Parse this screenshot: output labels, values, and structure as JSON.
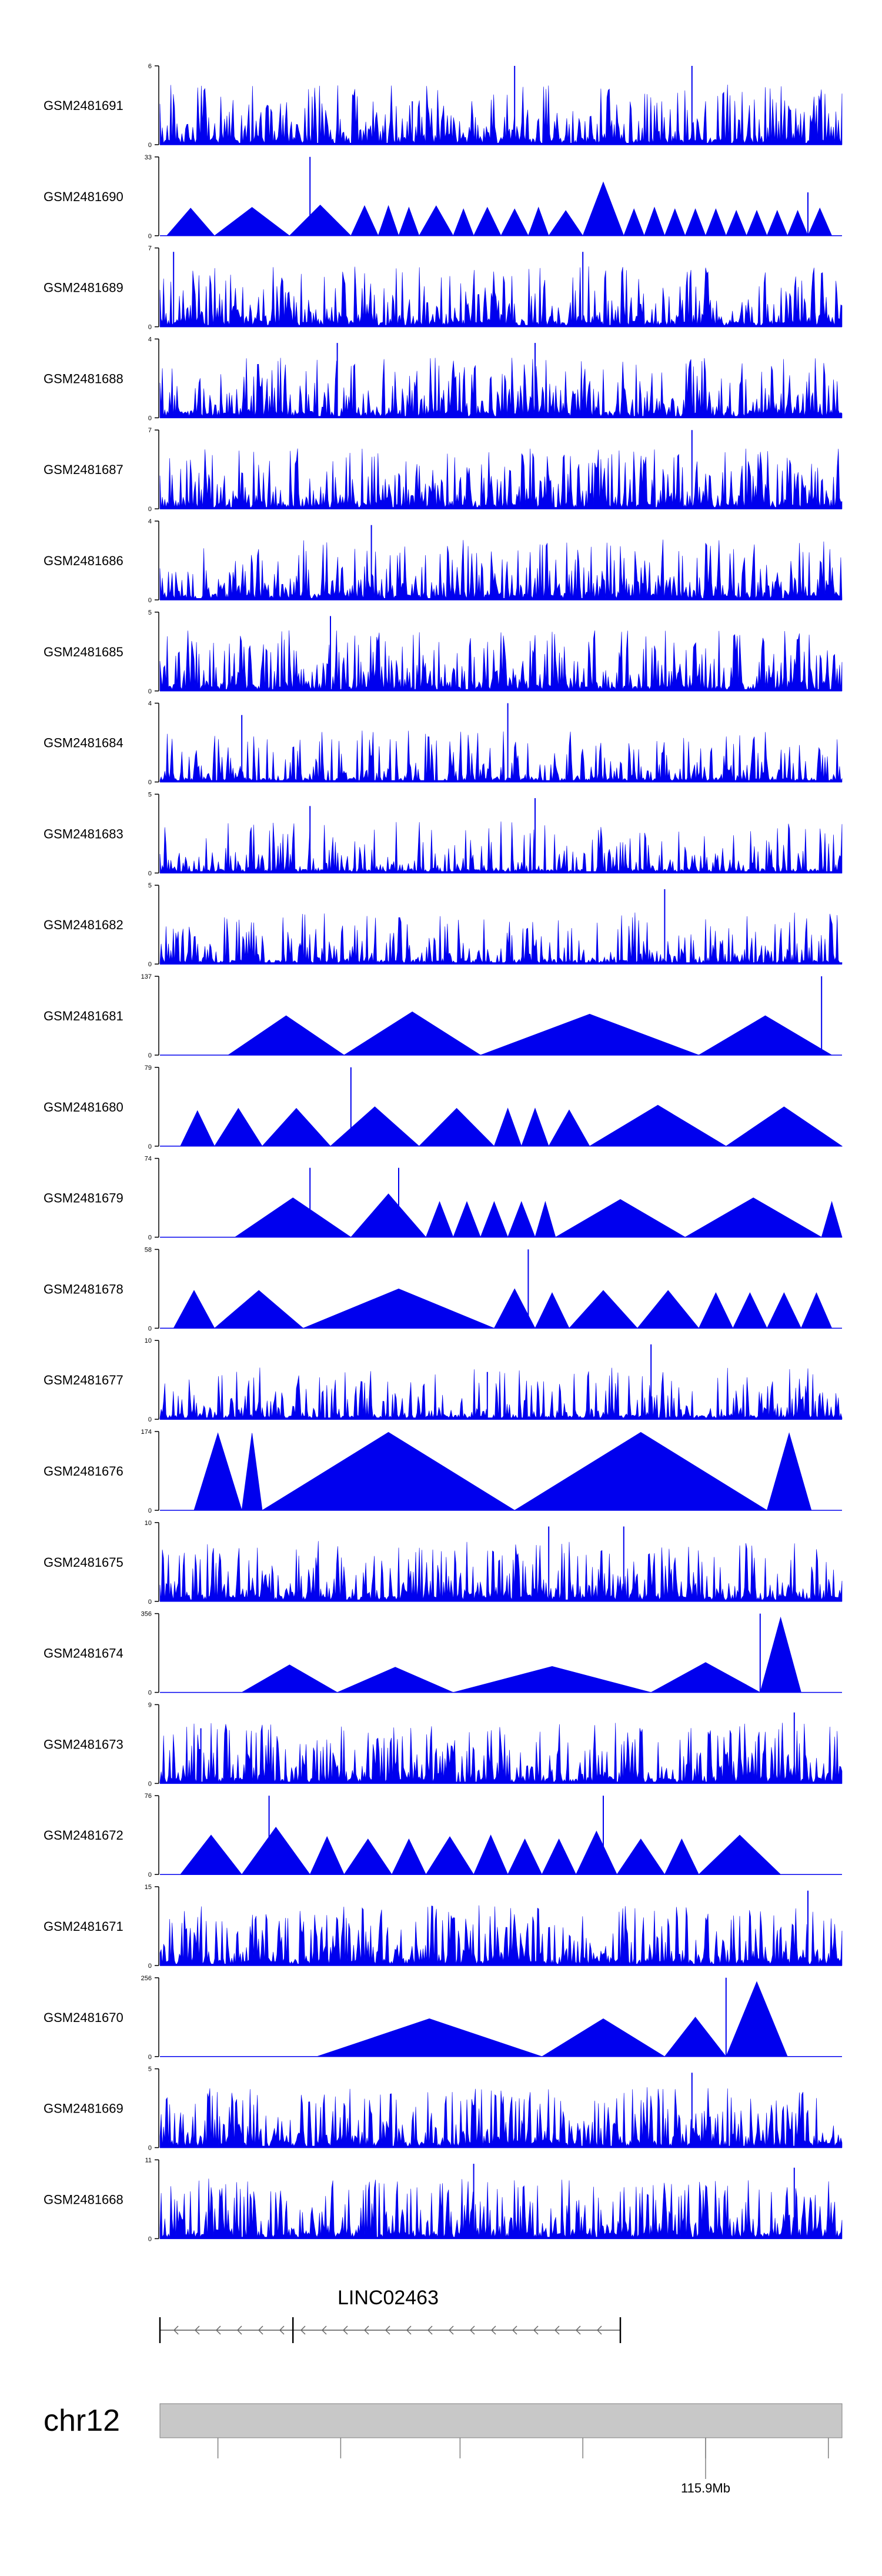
{
  "colors": {
    "signal": "#0000ee",
    "axis": "#000000",
    "ideogram_fill": "#c8c8c8",
    "ideogram_stroke": "#808080",
    "gene": "#555555"
  },
  "chart_data": {
    "type": "area",
    "description_axis": "genomic coordinate (bp) vs coverage",
    "x_domain": [
      115815000,
      115930000
    ],
    "tracks": [
      {
        "name": "GSM2481691",
        "ymax": 6,
        "ymin": 0,
        "style": "dense",
        "seed": 11,
        "peaks": [
          [
            0.52,
            1.0
          ],
          [
            0.78,
            1.0
          ],
          [
            0.37,
            0.55
          ]
        ]
      },
      {
        "name": "GSM2481690",
        "ymax": 33,
        "ymin": 0,
        "style": "triangles",
        "seed": 12,
        "peaks": [
          [
            0.22,
            1.0
          ],
          [
            0.95,
            0.55
          ]
        ],
        "tris": [
          [
            0.01,
            0.08,
            0.35
          ],
          [
            0.08,
            0.19,
            0.36
          ],
          [
            0.19,
            0.28,
            0.39
          ],
          [
            0.28,
            0.32,
            0.38
          ],
          [
            0.32,
            0.35,
            0.38
          ],
          [
            0.35,
            0.38,
            0.36
          ],
          [
            0.38,
            0.43,
            0.38
          ],
          [
            0.43,
            0.46,
            0.34
          ],
          [
            0.46,
            0.5,
            0.36
          ],
          [
            0.5,
            0.54,
            0.34
          ],
          [
            0.54,
            0.57,
            0.36
          ],
          [
            0.57,
            0.62,
            0.32
          ],
          [
            0.62,
            0.68,
            0.68
          ],
          [
            0.68,
            0.71,
            0.34
          ],
          [
            0.71,
            0.74,
            0.36
          ],
          [
            0.74,
            0.77,
            0.34
          ],
          [
            0.77,
            0.8,
            0.34
          ],
          [
            0.8,
            0.83,
            0.34
          ],
          [
            0.83,
            0.86,
            0.32
          ],
          [
            0.86,
            0.89,
            0.32
          ],
          [
            0.89,
            0.92,
            0.32
          ],
          [
            0.92,
            0.95,
            0.32
          ],
          [
            0.95,
            0.985,
            0.35
          ]
        ]
      },
      {
        "name": "GSM2481689",
        "ymax": 7,
        "ymin": 0,
        "style": "dense",
        "seed": 13,
        "peaks": [
          [
            0.02,
            0.95
          ],
          [
            0.62,
            0.95
          ]
        ]
      },
      {
        "name": "GSM2481688",
        "ymax": 4,
        "ymin": 0,
        "style": "dense",
        "seed": 14,
        "peaks": [
          [
            0.26,
            0.95
          ],
          [
            0.55,
            0.95
          ]
        ]
      },
      {
        "name": "GSM2481687",
        "ymax": 7,
        "ymin": 0,
        "style": "dense",
        "seed": 15,
        "peaks": [
          [
            0.78,
            1.0
          ]
        ]
      },
      {
        "name": "GSM2481686",
        "ymax": 4,
        "ymin": 0,
        "style": "dense",
        "seed": 16,
        "peaks": [
          [
            0.31,
            0.95
          ]
        ]
      },
      {
        "name": "GSM2481685",
        "ymax": 5,
        "ymin": 0,
        "style": "dense",
        "seed": 17,
        "peaks": [
          [
            0.25,
            0.95
          ]
        ]
      },
      {
        "name": "GSM2481684",
        "ymax": 4,
        "ymin": 0,
        "style": "sparse",
        "seed": 18,
        "peaks": [
          [
            0.12,
            0.85
          ],
          [
            0.51,
            1.0
          ]
        ]
      },
      {
        "name": "GSM2481683",
        "ymax": 5,
        "ymin": 0,
        "style": "sparse",
        "seed": 19,
        "peaks": [
          [
            0.55,
            0.95
          ],
          [
            0.22,
            0.85
          ]
        ]
      },
      {
        "name": "GSM2481682",
        "ymax": 5,
        "ymin": 0,
        "style": "sparse",
        "seed": 20,
        "peaks": [
          [
            0.74,
            0.95
          ]
        ]
      },
      {
        "name": "GSM2481681",
        "ymax": 137,
        "ymin": 0,
        "style": "triangles",
        "seed": 21,
        "peaks": [
          [
            0.97,
            1.0
          ]
        ],
        "tris": [
          [
            0.1,
            0.27,
            0.5
          ],
          [
            0.27,
            0.47,
            0.55
          ],
          [
            0.47,
            0.79,
            0.52
          ],
          [
            0.79,
            0.985,
            0.5
          ]
        ]
      },
      {
        "name": "GSM2481680",
        "ymax": 79,
        "ymin": 0,
        "style": "triangles",
        "seed": 22,
        "peaks": [
          [
            0.28,
            1.0
          ]
        ],
        "tris": [
          [
            0.03,
            0.08,
            0.45
          ],
          [
            0.08,
            0.15,
            0.48
          ],
          [
            0.15,
            0.25,
            0.48
          ],
          [
            0.25,
            0.38,
            0.5
          ],
          [
            0.38,
            0.49,
            0.48
          ],
          [
            0.49,
            0.53,
            0.48
          ],
          [
            0.53,
            0.57,
            0.48
          ],
          [
            0.57,
            0.63,
            0.46
          ],
          [
            0.63,
            0.83,
            0.52
          ],
          [
            0.83,
            1.0,
            0.5
          ]
        ]
      },
      {
        "name": "GSM2481679",
        "ymax": 74,
        "ymin": 0,
        "style": "triangles",
        "seed": 23,
        "peaks": [
          [
            0.22,
            0.88
          ],
          [
            0.35,
            0.88
          ]
        ],
        "tris": [
          [
            0.11,
            0.28,
            0.5
          ],
          [
            0.28,
            0.39,
            0.55
          ],
          [
            0.39,
            0.43,
            0.45
          ],
          [
            0.43,
            0.47,
            0.45
          ],
          [
            0.47,
            0.51,
            0.45
          ],
          [
            0.51,
            0.55,
            0.45
          ],
          [
            0.55,
            0.58,
            0.45
          ],
          [
            0.58,
            0.77,
            0.48
          ],
          [
            0.77,
            0.97,
            0.5
          ],
          [
            0.97,
            1.0,
            0.45
          ]
        ]
      },
      {
        "name": "GSM2481678",
        "ymax": 58,
        "ymin": 0,
        "style": "triangles",
        "seed": 24,
        "peaks": [
          [
            0.54,
            1.0
          ]
        ],
        "tris": [
          [
            0.02,
            0.08,
            0.48
          ],
          [
            0.08,
            0.21,
            0.48
          ],
          [
            0.21,
            0.49,
            0.5
          ],
          [
            0.49,
            0.55,
            0.5
          ],
          [
            0.55,
            0.6,
            0.45
          ],
          [
            0.6,
            0.7,
            0.48
          ],
          [
            0.7,
            0.79,
            0.48
          ],
          [
            0.79,
            0.84,
            0.45
          ],
          [
            0.84,
            0.89,
            0.45
          ],
          [
            0.89,
            0.94,
            0.45
          ],
          [
            0.94,
            0.985,
            0.45
          ]
        ]
      },
      {
        "name": "GSM2481677",
        "ymax": 10,
        "ymin": 0,
        "style": "sparse",
        "seed": 25,
        "peaks": [
          [
            0.72,
            0.95
          ],
          [
            0.48,
            0.6
          ]
        ]
      },
      {
        "name": "GSM2481676",
        "ymax": 174,
        "ymin": 0,
        "style": "triangles",
        "seed": 26,
        "peaks": [],
        "tris": [
          [
            0.05,
            0.12,
            0.98
          ],
          [
            0.12,
            0.15,
            0.98
          ],
          [
            0.15,
            0.52,
            0.99
          ],
          [
            0.52,
            0.89,
            0.99
          ],
          [
            0.89,
            0.955,
            0.98
          ]
        ]
      },
      {
        "name": "GSM2481675",
        "ymax": 10,
        "ymin": 0,
        "style": "dense",
        "seed": 27,
        "peaks": [
          [
            0.57,
            0.95
          ],
          [
            0.68,
            0.95
          ]
        ]
      },
      {
        "name": "GSM2481674",
        "ymax": 356,
        "ymin": 0,
        "style": "triangles",
        "seed": 28,
        "peaks": [
          [
            0.88,
            1.0
          ]
        ],
        "tris": [
          [
            0.12,
            0.26,
            0.35
          ],
          [
            0.26,
            0.43,
            0.32
          ],
          [
            0.43,
            0.72,
            0.33
          ],
          [
            0.72,
            0.88,
            0.38
          ],
          [
            0.88,
            0.94,
            0.95
          ]
        ]
      },
      {
        "name": "GSM2481673",
        "ymax": 9,
        "ymin": 0,
        "style": "dense",
        "seed": 29,
        "peaks": [
          [
            0.06,
            0.7
          ],
          [
            0.93,
            0.9
          ]
        ]
      },
      {
        "name": "GSM2481672",
        "ymax": 76,
        "ymin": 0,
        "style": "triangles",
        "seed": 30,
        "peaks": [
          [
            0.16,
            1.0
          ],
          [
            0.65,
            1.0
          ]
        ],
        "tris": [
          [
            0.03,
            0.12,
            0.5
          ],
          [
            0.12,
            0.22,
            0.6
          ],
          [
            0.22,
            0.27,
            0.48
          ],
          [
            0.27,
            0.34,
            0.45
          ],
          [
            0.34,
            0.39,
            0.45
          ],
          [
            0.39,
            0.46,
            0.48
          ],
          [
            0.46,
            0.51,
            0.5
          ],
          [
            0.51,
            0.56,
            0.45
          ],
          [
            0.56,
            0.61,
            0.45
          ],
          [
            0.61,
            0.67,
            0.55
          ],
          [
            0.67,
            0.74,
            0.45
          ],
          [
            0.74,
            0.79,
            0.45
          ],
          [
            0.79,
            0.91,
            0.5
          ]
        ]
      },
      {
        "name": "GSM2481671",
        "ymax": 15,
        "ymin": 0,
        "style": "dense",
        "seed": 31,
        "peaks": [
          [
            0.95,
            0.95
          ]
        ]
      },
      {
        "name": "GSM2481670",
        "ymax": 256,
        "ymin": 0,
        "style": "triangles",
        "seed": 32,
        "peaks": [
          [
            0.83,
            1.0
          ]
        ],
        "tris": [
          [
            0.23,
            0.56,
            0.48
          ],
          [
            0.56,
            0.74,
            0.48
          ],
          [
            0.74,
            0.83,
            0.5
          ],
          [
            0.83,
            0.92,
            0.95
          ]
        ]
      },
      {
        "name": "GSM2481669",
        "ymax": 5,
        "ymin": 0,
        "style": "dense",
        "seed": 33,
        "peaks": [
          [
            0.78,
            0.95
          ]
        ]
      },
      {
        "name": "GSM2481668",
        "ymax": 11,
        "ymin": 0,
        "style": "dense",
        "seed": 34,
        "peaks": [
          [
            0.46,
            0.95
          ],
          [
            0.93,
            0.9
          ]
        ]
      }
    ],
    "gene": {
      "name": "LINC02463",
      "strand": "-",
      "start_frac": 0.0,
      "end_frac": 0.675,
      "exon_marks": [
        0.0,
        0.195,
        0.675
      ]
    },
    "chromosome": {
      "name": "chr12",
      "tick_fracs": [
        0.085,
        0.265,
        0.44,
        0.62,
        0.8,
        0.98
      ],
      "labeled_tick_frac": 0.8,
      "labeled_tick_text": "115.9Mb"
    }
  }
}
